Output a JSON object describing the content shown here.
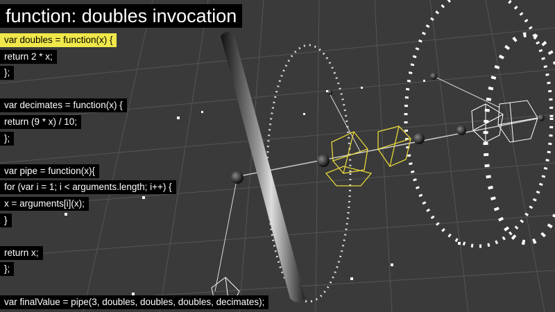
{
  "title": "function: doubles invocation",
  "highlight_color": "#f0e84a",
  "wire_color_active": "#e8d83a",
  "wire_color_inactive": "#ffffff",
  "code_lines": [
    {
      "text": "var doubles = function(x) {",
      "highlight": true
    },
    {
      "text": "return 2 * x;",
      "highlight": false
    },
    {
      "text": "};",
      "highlight": false
    },
    {
      "text": "",
      "highlight": false
    },
    {
      "text": "var decimates = function(x) {",
      "highlight": false
    },
    {
      "text": "return (9 * x) / 10;",
      "highlight": false
    },
    {
      "text": "};",
      "highlight": false
    },
    {
      "text": "",
      "highlight": false
    },
    {
      "text": "var pipe = function(x){",
      "highlight": false
    },
    {
      "text": "for (var i = 1; i < arguments.length; i++) {",
      "highlight": false
    },
    {
      "text": "x = arguments[i](x);",
      "highlight": false
    },
    {
      "text": "}",
      "highlight": false
    },
    {
      "text": "",
      "highlight": false
    },
    {
      "text": "return x;",
      "highlight": false
    },
    {
      "text": "};",
      "highlight": false
    },
    {
      "text": "",
      "highlight": false
    },
    {
      "text": "var finalValue = pipe(3, doubles, doubles, doubles, decimates);",
      "highlight": false
    }
  ]
}
